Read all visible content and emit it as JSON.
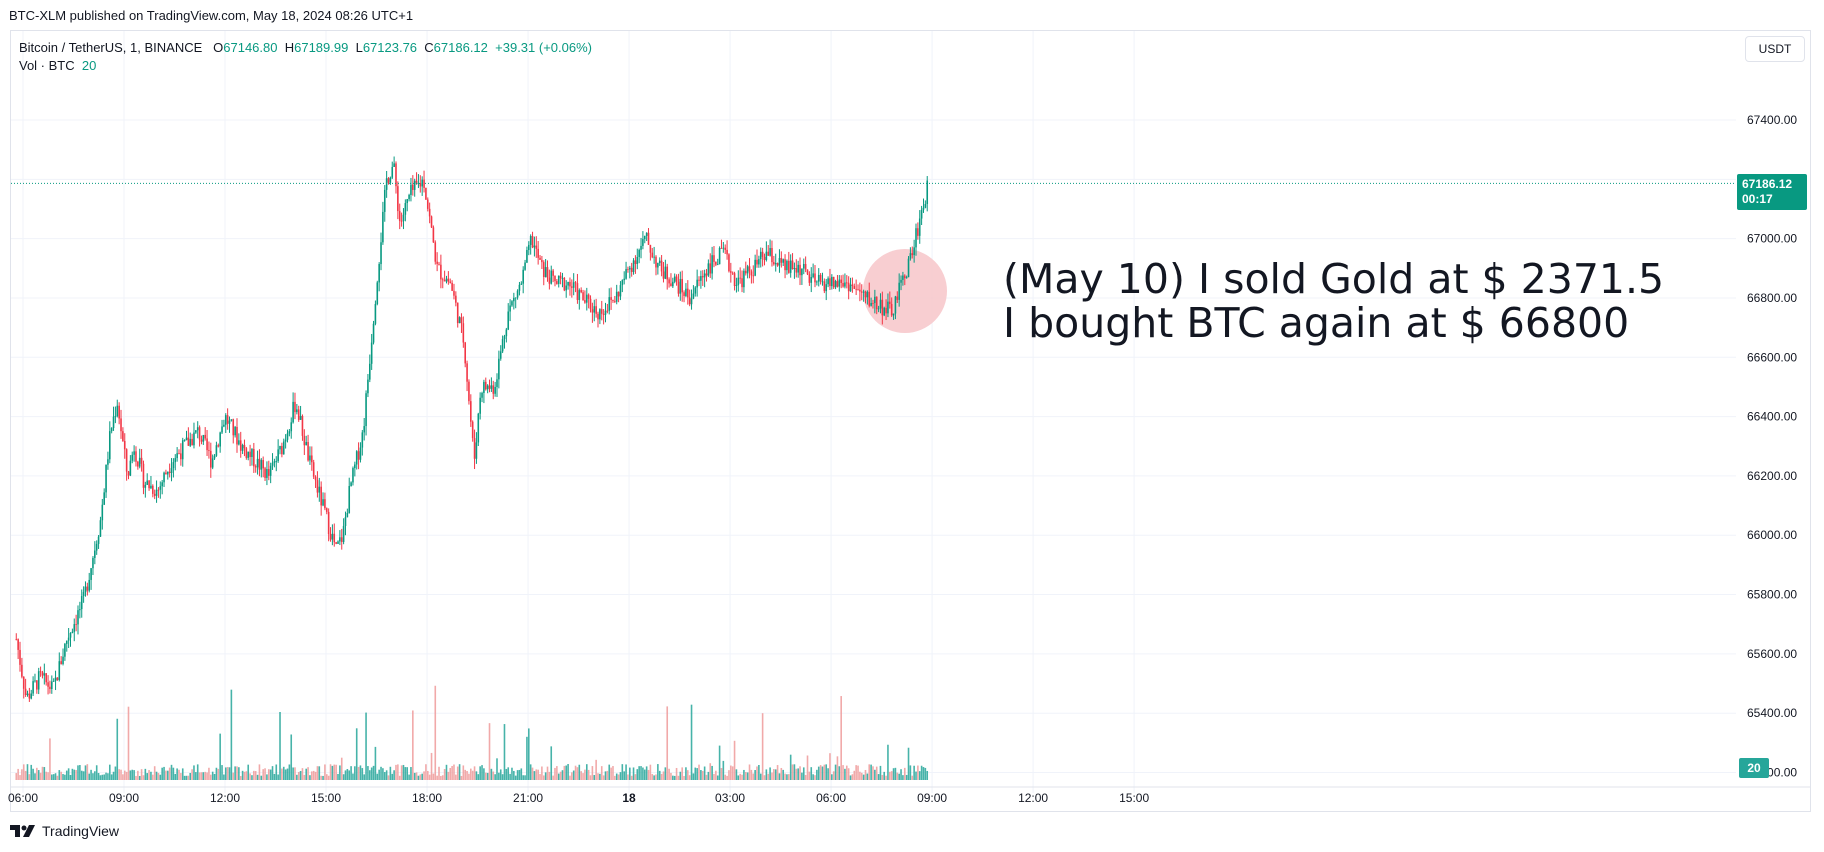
{
  "publish_line": "BTC-XLM published on TradingView.com, May 18, 2024 08:26 UTC+1",
  "legend": {
    "symbol": "Bitcoin / TetherUS, 1, BINANCE",
    "o_label": "O",
    "o_value": "67146.80",
    "h_label": "H",
    "h_value": "67189.99",
    "l_label": "L",
    "l_value": "67123.76",
    "c_label": "C",
    "c_value": "67186.12",
    "change": "+39.31 (+0.06%)",
    "vol_label": "Vol · BTC",
    "vol_value": "20"
  },
  "currency_button": "USDT",
  "price_tag": {
    "price": "67186.12",
    "countdown": "00:17"
  },
  "volume_tag": "20",
  "annotation": {
    "line1": "(May 10) I sold Gold at $ 2371.5",
    "line2": "I bought BTC again at $ 66800"
  },
  "footer_brand": "TradingView",
  "colors": {
    "up": "#089981",
    "down": "#f23645",
    "vol_up": "#26a69a",
    "vol_down": "#ef9a9a",
    "highlight": "#f7c5c9"
  },
  "chart_data": {
    "type": "line",
    "title": "",
    "xlabel": "",
    "ylabel": "",
    "x_ticks": [
      "06:00",
      "09:00",
      "12:00",
      "15:00",
      "18:00",
      "21:00",
      "18",
      "03:00",
      "06:00",
      "09:00",
      "12:00",
      "15:00"
    ],
    "y_ticks": [
      "67400.00",
      "67200.00",
      "67000.00",
      "66800.00",
      "66600.00",
      "66400.00",
      "66200.00",
      "66000.00",
      "65800.00",
      "65600.00",
      "65400.00",
      "65200.00"
    ],
    "ylim": [
      65200,
      67560
    ],
    "xlim_hours": [
      5.25,
      36.0
    ],
    "last_price": 67186.12,
    "series": [
      {
        "name": "BTCUSDT",
        "x_hours": [
          5.3,
          5.6,
          6.0,
          6.4,
          6.8,
          7.3,
          7.8,
          8.1,
          8.3,
          8.6,
          8.8,
          9.1,
          9.5,
          9.9,
          10.3,
          10.7,
          11.1,
          11.5,
          12.0,
          12.4,
          12.8,
          13.2,
          13.6,
          14.0,
          14.4,
          14.8,
          15.0,
          15.2,
          15.6,
          16.0,
          16.3,
          16.5,
          16.7,
          17.0,
          17.4,
          17.8,
          18.2,
          18.6,
          18.9,
          19.1,
          19.5,
          19.9,
          20.3,
          20.6,
          20.9,
          21.3,
          21.7,
          22.1,
          22.6,
          23.1,
          23.5,
          24.0,
          24.4,
          24.9,
          25.3,
          25.8,
          26.3,
          26.7,
          27.2,
          27.6,
          28.1,
          28.6,
          29.0,
          29.5,
          30.0,
          30.5,
          30.9,
          31.3,
          31.6,
          31.9,
          32.1,
          32.4
        ],
        "y_values": [
          65650,
          65450,
          65520,
          65480,
          65650,
          65780,
          66050,
          66350,
          66450,
          66200,
          66300,
          66180,
          66150,
          66250,
          66300,
          66350,
          66250,
          66400,
          66300,
          66250,
          66200,
          66300,
          66450,
          66250,
          66100,
          65950,
          66000,
          66150,
          66350,
          66850,
          67200,
          67250,
          67050,
          67150,
          67200,
          66900,
          66850,
          66650,
          66250,
          66500,
          66500,
          66750,
          66850,
          67000,
          66900,
          66850,
          66850,
          66800,
          66750,
          66800,
          66900,
          67000,
          66900,
          66850,
          66800,
          66900,
          66950,
          66850,
          66900,
          66950,
          66900,
          66900,
          66850,
          66850,
          66850,
          66800,
          66780,
          66750,
          66850,
          66950,
          67050,
          67186
        ]
      }
    ]
  }
}
